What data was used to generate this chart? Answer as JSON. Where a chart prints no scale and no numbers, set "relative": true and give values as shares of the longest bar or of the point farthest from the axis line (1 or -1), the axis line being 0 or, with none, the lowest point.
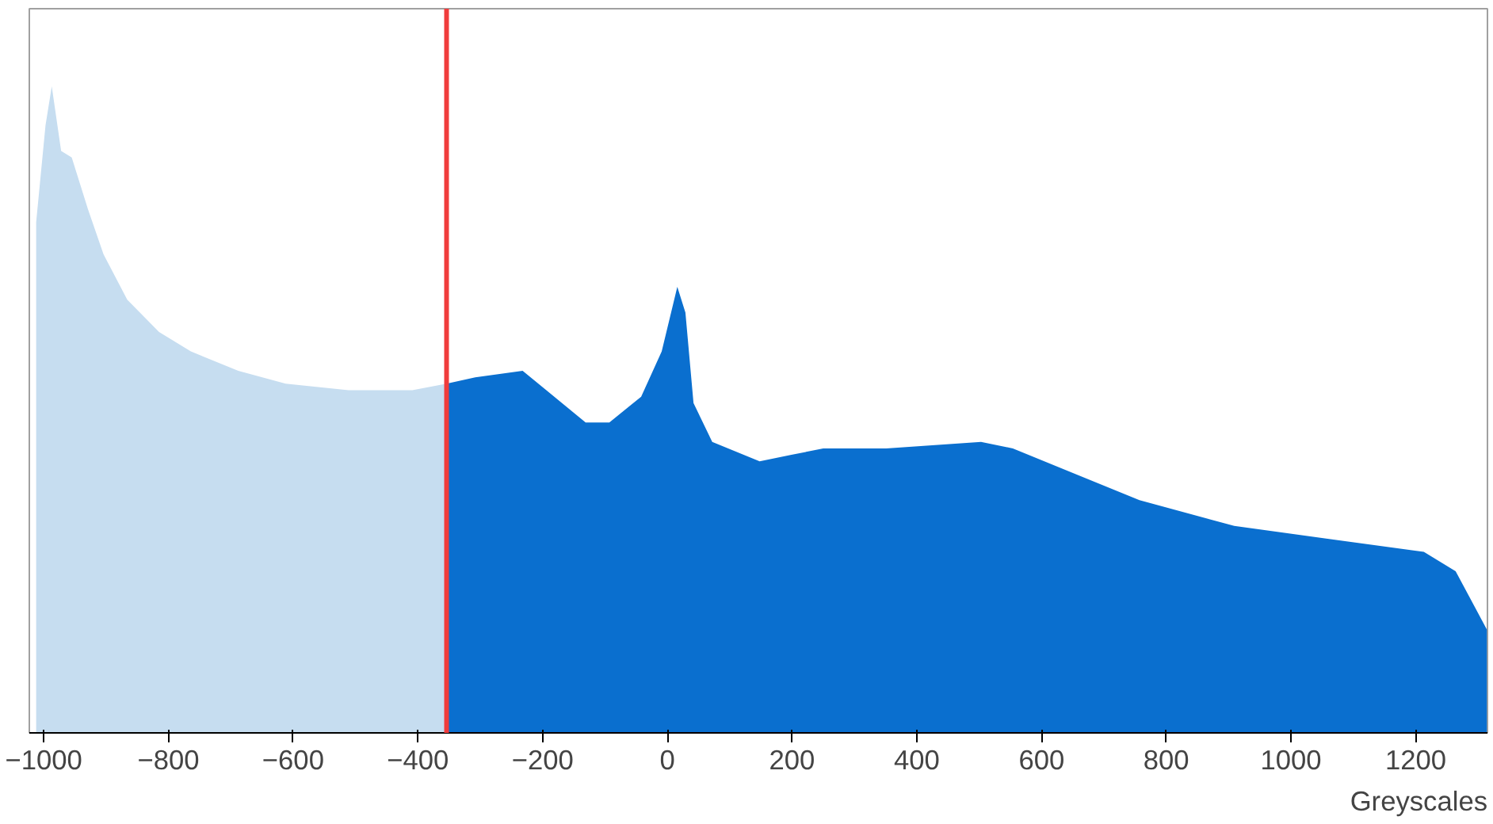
{
  "chart_data": {
    "type": "area",
    "relative": true,
    "xlabel": "Greyscales",
    "xlim": [
      -1023,
      1315
    ],
    "xticks": [
      -1000,
      -800,
      -600,
      -400,
      -200,
      0,
      200,
      400,
      600,
      800,
      1000,
      1200
    ],
    "grid": false,
    "series": [
      {
        "color": "#c6ddf0",
        "x": [
          -1012,
          -997,
          -987,
          -972,
          -955,
          -929,
          -904,
          -866,
          -815,
          -764,
          -688,
          -612,
          -511,
          -409,
          -354
        ],
        "values": [
          0.79,
          0.94,
          1.0,
          0.9,
          0.89,
          0.81,
          0.74,
          0.67,
          0.62,
          0.59,
          0.56,
          0.54,
          0.53,
          0.53,
          0.54
        ]
      },
      {
        "color": "#0a6fcf",
        "x": [
          -354,
          -308,
          -232,
          -194,
          -131,
          -93,
          -42,
          -9,
          16,
          29,
          42,
          72,
          148,
          199,
          250,
          351,
          503,
          554,
          655,
          757,
          909,
          1061,
          1213,
          1264,
          1314
        ],
        "values": [
          0.54,
          0.55,
          0.56,
          0.53,
          0.48,
          0.48,
          0.52,
          0.59,
          0.69,
          0.65,
          0.51,
          0.45,
          0.42,
          0.43,
          0.44,
          0.44,
          0.45,
          0.44,
          0.4,
          0.36,
          0.32,
          0.3,
          0.28,
          0.25,
          0.16
        ]
      }
    ],
    "ref_lines": [
      {
        "axis": "x",
        "value": -354,
        "color": "#f03c3c"
      }
    ]
  }
}
